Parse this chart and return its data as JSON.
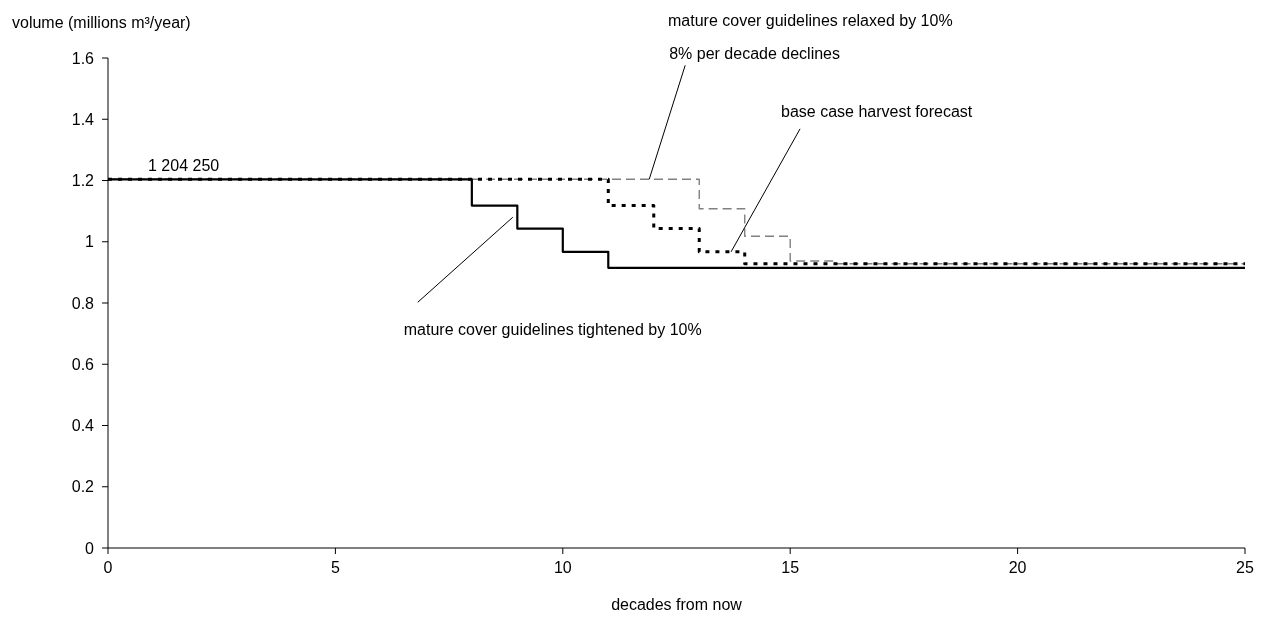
{
  "chart_data": {
    "type": "step",
    "ylabel": "volume (millions m³/year)",
    "xlabel": "decades from now",
    "xlim": [
      0,
      25
    ],
    "xticks": [
      0,
      5,
      10,
      15,
      20,
      25
    ],
    "ylim": [
      0,
      1.6
    ],
    "yticks": [
      0,
      0.2,
      0.4,
      0.6,
      0.8,
      1,
      1.2,
      1.4,
      1.6
    ],
    "grid": false,
    "marker": "none",
    "series": [
      {
        "color": "#808080",
        "line_style": "dashed",
        "x": [
          0,
          13,
          14,
          15,
          16,
          25
        ],
        "values": [
          1.204,
          1.108,
          1.018,
          0.937,
          0.928,
          0.928
        ]
      },
      {
        "color": "#000000",
        "line_style": "dotted",
        "x": [
          0,
          11,
          12,
          13,
          14,
          25
        ],
        "values": [
          1.204,
          1.118,
          1.043,
          0.967,
          0.928,
          0.928
        ]
      },
      {
        "color": "#000000",
        "line_style": "solid",
        "x": [
          0,
          8,
          9,
          10,
          11,
          25
        ],
        "values": [
          1.204,
          1.118,
          1.043,
          0.967,
          0.915,
          0.915
        ]
      }
    ],
    "annotations": [
      "mature cover guidelines relaxed by 10%",
      {
        "text": "8% per decade declines",
        "x": 11.9,
        "y": 1.204
      },
      {
        "text": "base case harvest forecast",
        "x": 13.7,
        "y": 0.967
      },
      {
        "text": "mature cover guidelines tightened by 10%",
        "x": 8.9,
        "y": 1.08
      },
      {
        "text": "1 204 250",
        "x": 0,
        "y": 1.204
      }
    ]
  }
}
